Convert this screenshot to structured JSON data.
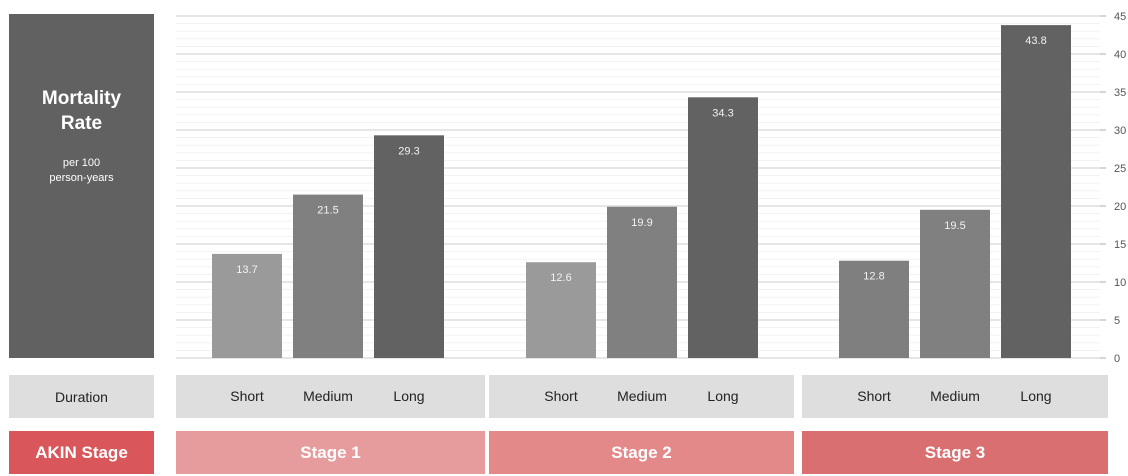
{
  "ylabel": {
    "title": "Mortality Rate",
    "subtitle": "per 100 person-years"
  },
  "duration_label": "Duration",
  "stage_label": "AKIN Stage",
  "colors": {
    "short": "#9a9a9a",
    "medium": "#808080",
    "long": "#626262",
    "stage3_short": "#7f7f7f",
    "stage1": "#e69c9d",
    "stage2": "#e3898a",
    "stage3": "#da6f71",
    "axis_label_bg": "#616161",
    "row_bg": "#dedede"
  },
  "chart_data": {
    "type": "bar",
    "ylim": [
      0,
      45
    ],
    "yticks": [
      0,
      5,
      10,
      15,
      20,
      25,
      30,
      35,
      40,
      45
    ],
    "grid": true,
    "groups": [
      {
        "stage": "Stage 1",
        "bars": [
          {
            "label": "Short",
            "value": 13.7
          },
          {
            "label": "Medium",
            "value": 21.5
          },
          {
            "label": "Long",
            "value": 29.3
          }
        ]
      },
      {
        "stage": "Stage 2",
        "bars": [
          {
            "label": "Short",
            "value": 12.6
          },
          {
            "label": "Medium",
            "value": 19.9
          },
          {
            "label": "Long",
            "value": 34.3
          }
        ]
      },
      {
        "stage": "Stage 3",
        "bars": [
          {
            "label": "Short",
            "value": 12.8
          },
          {
            "label": "Medium",
            "value": 19.5
          },
          {
            "label": "Long",
            "value": 43.8
          }
        ]
      }
    ]
  }
}
